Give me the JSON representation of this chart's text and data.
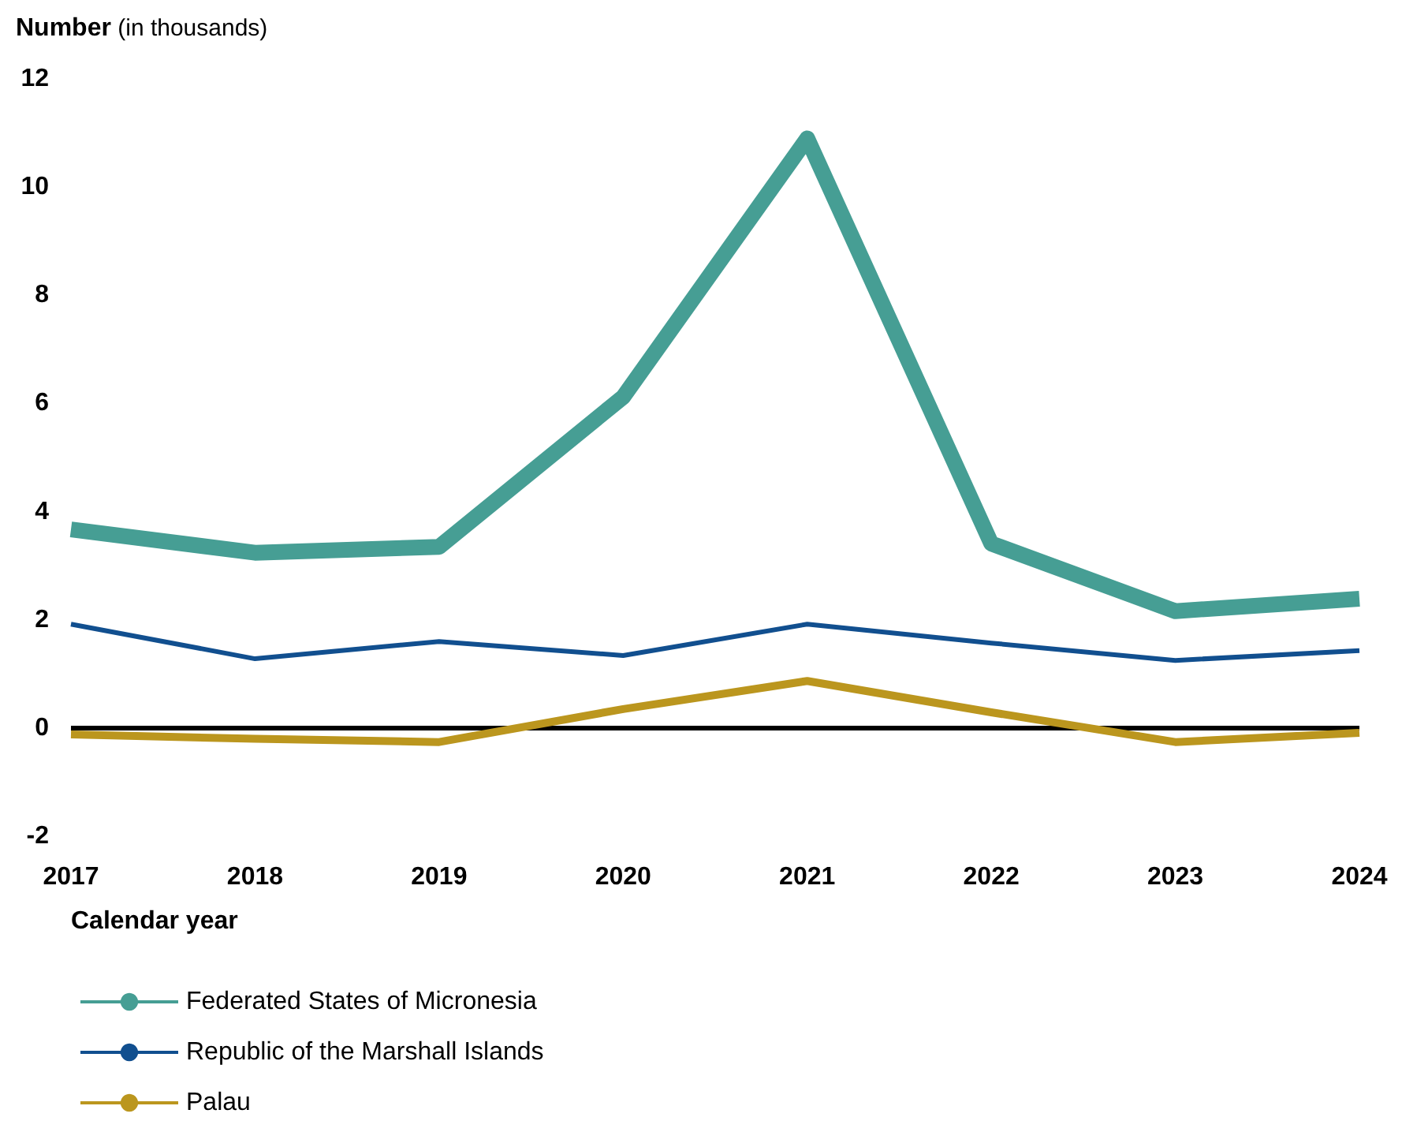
{
  "chart_data": {
    "type": "line",
    "ylabel": "Number (in thousands)",
    "xlabel": "Calendar year",
    "categories": [
      "2017",
      "2018",
      "2019",
      "2020",
      "2021",
      "2022",
      "2023",
      "2024"
    ],
    "series": [
      {
        "name": "Federated States of Micronesia",
        "color": "#469e94",
        "values": [
          3.67,
          3.24,
          3.35,
          6.12,
          10.9,
          3.41,
          2.16,
          2.39
        ]
      },
      {
        "name": "Republic of the Marshall Islands",
        "color": "#114f8f",
        "values": [
          1.92,
          1.28,
          1.6,
          1.34,
          1.92,
          1.57,
          1.25,
          1.43
        ]
      },
      {
        "name": "Palau",
        "color": "#bb961e",
        "values": [
          -0.12,
          -0.2,
          -0.26,
          0.35,
          0.87,
          0.29,
          -0.26,
          -0.09
        ]
      }
    ],
    "ylim": [
      -2,
      12
    ],
    "yticks": [
      -2,
      0,
      2,
      4,
      6,
      8,
      10,
      12
    ],
    "ref_lines": [
      {
        "axis": "y",
        "value": 0,
        "color": "#000000"
      }
    ],
    "grid": false,
    "legend": "bottom",
    "marker": "none",
    "line_style": "solid"
  }
}
